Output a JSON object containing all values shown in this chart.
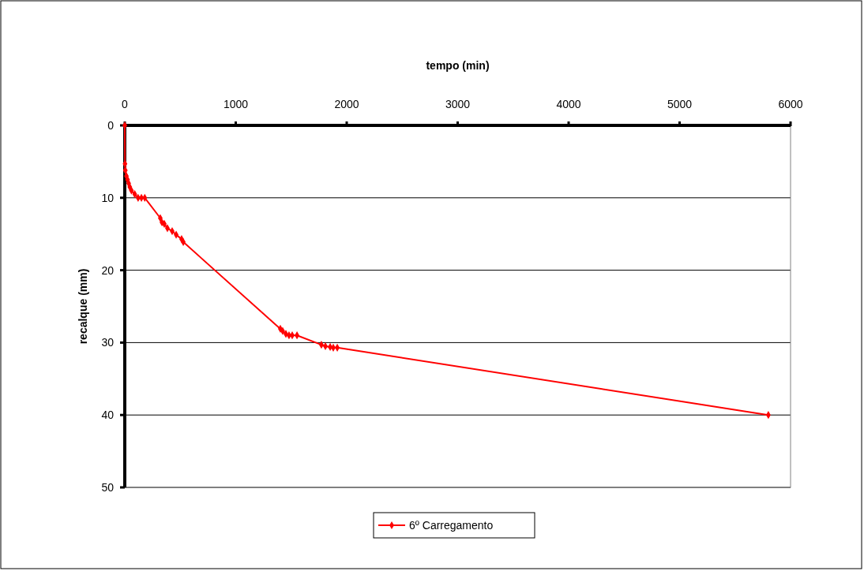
{
  "chart_data": {
    "type": "line",
    "xlabel": "tempo (min)",
    "ylabel": "recalque (mm)",
    "xlim": [
      0,
      6000
    ],
    "xticks": [
      0,
      1000,
      2000,
      3000,
      4000,
      5000,
      6000
    ],
    "ylim": [
      50,
      0
    ],
    "yticks": [
      0,
      10,
      20,
      30,
      40,
      50
    ],
    "grid": "y",
    "legend": "bottom",
    "marker": "diamond",
    "line_style": "solid",
    "series": [
      {
        "name": "6º Carregamento",
        "color": "#ff0000",
        "x": [
          0,
          2,
          5,
          15,
          25,
          35,
          45,
          60,
          90,
          120,
          150,
          180,
          320,
          335,
          356,
          384,
          427,
          463,
          512,
          527,
          1402,
          1423,
          1452,
          1480,
          1509,
          1552,
          1772,
          1808,
          1851,
          1879,
          1915,
          5800
        ],
        "values": [
          0,
          5.3,
          6.2,
          7,
          7.5,
          8,
          8.5,
          9,
          9.5,
          10,
          10,
          10,
          12.8,
          13.4,
          13.6,
          14.2,
          14.6,
          15.1,
          15.7,
          16.1,
          28.1,
          28.4,
          28.8,
          29,
          29,
          29,
          30.3,
          30.5,
          30.6,
          30.7,
          30.7,
          40
        ]
      }
    ]
  }
}
